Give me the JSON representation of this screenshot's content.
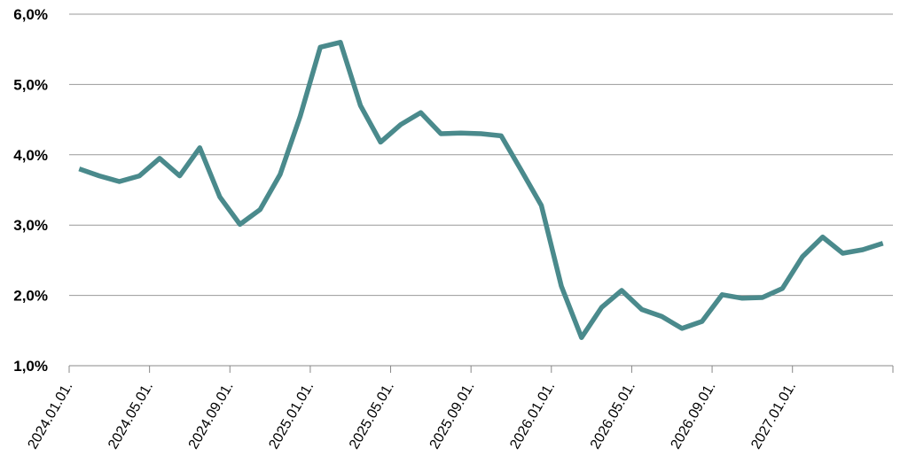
{
  "chart_data": {
    "type": "line",
    "categories": [
      "2024.01.01.",
      null,
      null,
      null,
      "2024.05.01.",
      null,
      null,
      null,
      "2024.09.01.",
      null,
      null,
      null,
      "2025.01.01.",
      null,
      null,
      null,
      "2025.05.01.",
      null,
      null,
      null,
      "2025.09.01.",
      null,
      null,
      null,
      "2026.01.01.",
      null,
      null,
      null,
      "2026.05.01.",
      null,
      null,
      null,
      "2026.09.01.",
      null,
      null,
      null,
      "2027.01.01.",
      null,
      null,
      null,
      null
    ],
    "series": [
      {
        "color": "#4a8a8c",
        "values": [
          3.8,
          3.7,
          3.62,
          3.7,
          3.95,
          3.7,
          4.1,
          3.4,
          3.01,
          3.22,
          3.72,
          4.55,
          5.53,
          5.6,
          4.7,
          4.18,
          4.43,
          4.6,
          4.3,
          4.31,
          4.3,
          4.27,
          3.78,
          3.28,
          2.13,
          1.4,
          1.83,
          2.07,
          1.8,
          1.7,
          1.53,
          1.63,
          2.01,
          1.96,
          1.97,
          2.1,
          2.55,
          2.83,
          2.6,
          2.65,
          2.74
        ]
      }
    ],
    "ylim": [
      1,
      6
    ],
    "yticks": [
      {
        "value": 1,
        "label": "1,0%"
      },
      {
        "value": 2,
        "label": "2,0%"
      },
      {
        "value": 3,
        "label": "3,0%"
      },
      {
        "value": 4,
        "label": "4,0%"
      },
      {
        "value": 5,
        "label": "5,0%"
      },
      {
        "value": 6,
        "label": "6,0%"
      }
    ],
    "grid": true
  }
}
